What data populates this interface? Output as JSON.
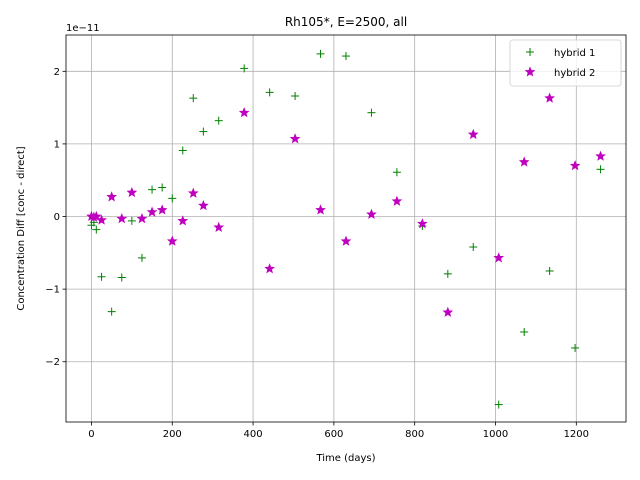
{
  "chart_data": {
    "type": "scatter",
    "title": "Rh105*, E=2500, all",
    "xlabel": "Time (days)",
    "ylabel": "Concentration Diff [conc - direct]",
    "y_scale_label": "1e−11",
    "xlim": [
      -63,
      1323
    ],
    "ylim": [
      -2.83,
      2.5
    ],
    "x_ticks": [
      0,
      200,
      400,
      600,
      800,
      1000,
      1200
    ],
    "x_tick_labels": [
      "0",
      "200",
      "400",
      "600",
      "800",
      "1000",
      "1200"
    ],
    "y_ticks": [
      -2,
      -1,
      0,
      1,
      2
    ],
    "y_tick_labels": [
      "−2",
      "−1",
      "0",
      "1",
      "2"
    ],
    "grid": true,
    "legend_position": "upper right",
    "series": [
      {
        "name": "hybrid 1",
        "marker": "plus",
        "color": "#008000",
        "x": [
          0,
          6,
          12,
          25,
          50,
          75,
          100,
          125,
          150,
          175,
          200,
          226,
          252,
          277,
          315,
          378,
          441,
          504,
          567,
          630,
          693,
          756,
          819,
          882,
          945,
          1008,
          1071,
          1134,
          1197,
          1260
        ],
        "y": [
          -0.12,
          -0.08,
          -0.18,
          -0.83,
          -1.31,
          -0.84,
          -0.06,
          -0.57,
          0.37,
          0.4,
          0.25,
          0.91,
          1.63,
          1.17,
          1.32,
          2.04,
          1.71,
          1.66,
          2.24,
          2.21,
          1.43,
          0.61,
          -0.13,
          -0.79,
          -0.42,
          -2.59,
          -1.59,
          -0.75,
          -1.81,
          0.65
        ]
      },
      {
        "name": "hybrid 2",
        "marker": "star",
        "color": "#bf00bf",
        "x": [
          0,
          6,
          12,
          25,
          50,
          75,
          100,
          125,
          150,
          175,
          200,
          226,
          252,
          277,
          315,
          378,
          441,
          504,
          567,
          630,
          693,
          756,
          819,
          882,
          945,
          1008,
          1071,
          1134,
          1197,
          1260
        ],
        "y": [
          0.0,
          -0.01,
          0.0,
          -0.05,
          0.27,
          -0.03,
          0.33,
          -0.03,
          0.06,
          0.09,
          -0.34,
          -0.06,
          0.32,
          0.15,
          -0.15,
          1.43,
          -0.72,
          1.07,
          0.09,
          -0.34,
          0.03,
          0.21,
          -0.1,
          -1.32,
          1.13,
          -0.57,
          0.75,
          1.63,
          0.7,
          0.83
        ]
      }
    ]
  }
}
